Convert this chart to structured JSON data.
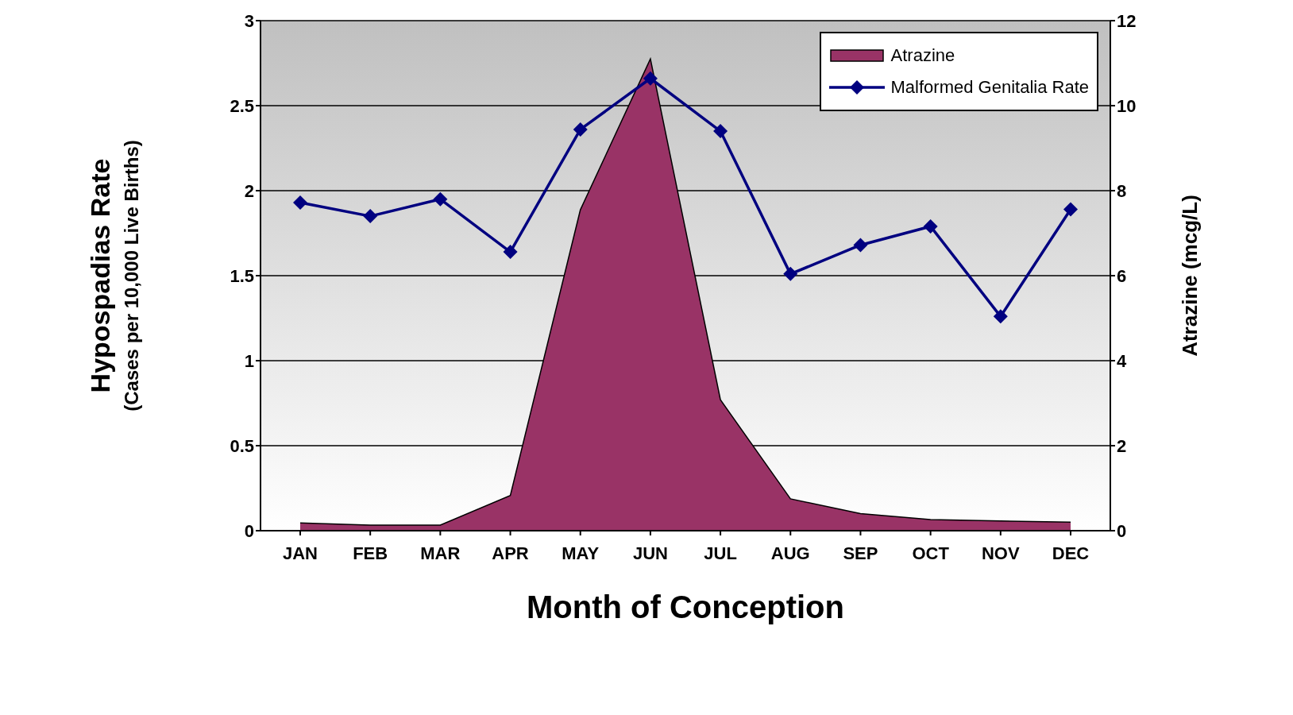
{
  "chart_data": {
    "type": "line",
    "xlabel": "Month of Conception",
    "ylabel": "Hypospadias Rate\n(Cases per 10,000 Live Births)",
    "y2label": "Atrazine (mcg/L)",
    "categories": [
      "JAN",
      "FEB",
      "MAR",
      "APR",
      "MAY",
      "JUN",
      "JUL",
      "AUG",
      "SEP",
      "OCT",
      "NOV",
      "DEC"
    ],
    "series": [
      {
        "name": "Atrazine",
        "type": "area",
        "axis": "y2",
        "color": "#993366",
        "values": [
          0.18,
          0.13,
          0.13,
          0.83,
          7.55,
          11.1,
          3.08,
          0.75,
          0.4,
          0.26,
          0.23,
          0.2
        ]
      },
      {
        "name": "Malformed Genitalia Rate",
        "color": "#000080",
        "marker": "diamond",
        "values": [
          1.93,
          1.85,
          1.95,
          1.64,
          2.36,
          2.66,
          2.35,
          1.51,
          1.68,
          1.79,
          1.26,
          1.89
        ]
      }
    ],
    "ylim": [
      0,
      3
    ],
    "yticks": [
      0,
      0.5,
      1,
      1.5,
      2,
      2.5,
      3
    ],
    "y2lim": [
      0,
      12
    ],
    "y2ticks": [
      0,
      2,
      4,
      6,
      8,
      10,
      12
    ],
    "grid": "y",
    "legend": "top right"
  }
}
